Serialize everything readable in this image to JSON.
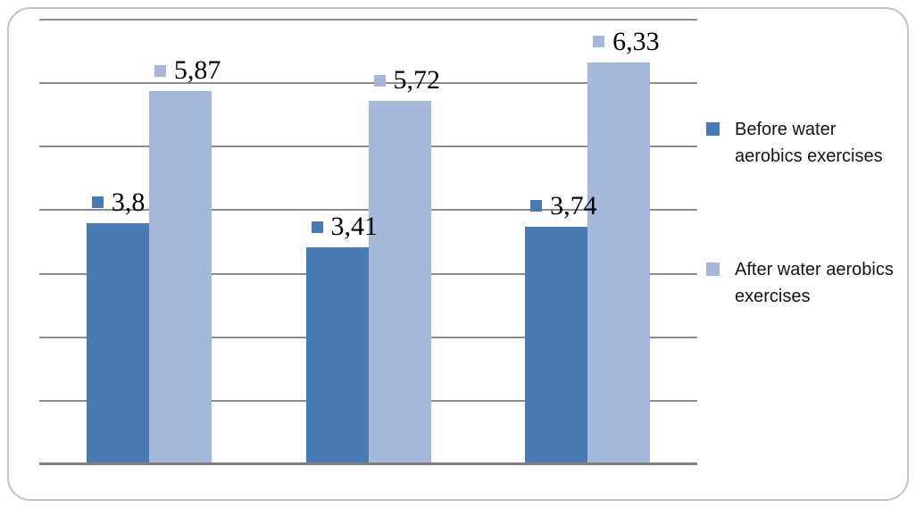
{
  "chart_data": {
    "type": "bar",
    "categories": [
      "",
      "",
      ""
    ],
    "series": [
      {
        "name": "Before water aerobics exercises",
        "color": "#4a7ab3",
        "values": [
          3.8,
          3.41,
          3.74
        ],
        "labels": [
          "3,8",
          "3,41",
          "3,74"
        ]
      },
      {
        "name": "After water aerobics exercises",
        "color": "#a5b8dc",
        "values": [
          5.87,
          5.72,
          6.33
        ],
        "labels": [
          "5,87",
          "5,72",
          "6,33"
        ]
      }
    ],
    "title": "",
    "xlabel": "",
    "ylabel": "",
    "ylim": [
      0,
      7
    ],
    "gridline_interval": 1,
    "gridline_color": "#8d8d8d",
    "axis_tick_labels_visible": false,
    "category_labels_visible": false,
    "legend_position": "right",
    "decimal_separator": ",",
    "data_labels_have_legend_keys": true,
    "frame_border_color": "#c3c3c3",
    "background_color": "#ffffff"
  },
  "legend": {
    "items": [
      {
        "label": "Before water aerobics exercises"
      },
      {
        "label": "After water aerobics exercises"
      }
    ]
  }
}
